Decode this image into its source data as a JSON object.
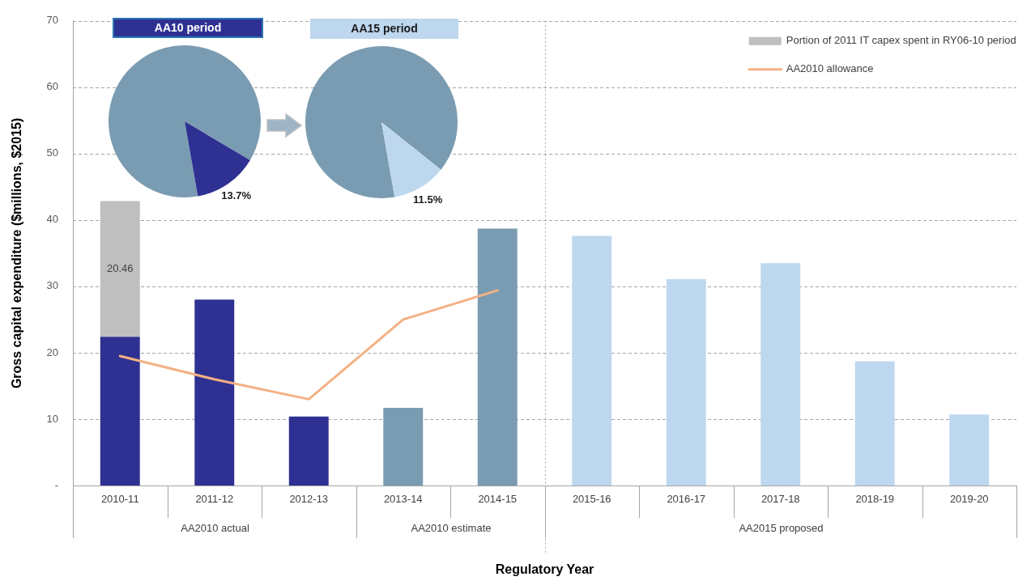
{
  "chart_data": [
    {
      "type": "bar",
      "xlabel": "Regulatory Year",
      "ylabel": "Gross capital expenditure ($millions, $2015)",
      "categories": [
        "2010-11",
        "2011-12",
        "2012-13",
        "2013-14",
        "2014-15",
        "2015-16",
        "2016-17",
        "2017-18",
        "2018-19",
        "2019-20"
      ],
      "series": [
        {
          "color": "#2e3192",
          "values": [
            22.4,
            28.0,
            10.4,
            null,
            null,
            null,
            null,
            null,
            null,
            null
          ]
        },
        {
          "name": "Portion of 2011 IT capex spent in RY06-10 period",
          "color": "#bfbfbf",
          "values": [
            20.46,
            null,
            null,
            null,
            null,
            null,
            null,
            null,
            null,
            null
          ],
          "value_labels": [
            "20.46",
            null,
            null,
            null,
            null,
            null,
            null,
            null,
            null,
            null
          ]
        },
        {
          "color": "#7a9cb2",
          "values": [
            null,
            null,
            null,
            11.7,
            38.7,
            null,
            null,
            null,
            null,
            null
          ]
        },
        {
          "color": "#bdd7ee",
          "values": [
            null,
            null,
            null,
            null,
            null,
            37.6,
            31.1,
            33.5,
            18.7,
            10.7
          ]
        },
        {
          "type": "line",
          "name": "AA2010 allowance",
          "color": "#f4b183",
          "values": [
            19.5,
            16.0,
            13.0,
            25.0,
            29.4,
            null,
            null,
            null,
            null,
            null
          ]
        }
      ],
      "stacked": true,
      "ylim": [
        0,
        70
      ],
      "yticks": [
        {
          "value": 0,
          "label": "-"
        },
        10,
        20,
        30,
        40,
        50,
        60,
        70
      ],
      "grid": "y",
      "legend": "top right",
      "annotations": [
        "AA2010 actual",
        "AA2010 estimate",
        "AA2015 proposed"
      ]
    },
    {
      "type": "pie",
      "title": "AA10 period",
      "categories": [
        null,
        null
      ],
      "values": [
        86.3,
        13.7
      ],
      "colors": [
        "#7a9cb2",
        "#2e3192"
      ],
      "value_labels": [
        null,
        "13.7%"
      ]
    },
    {
      "type": "pie",
      "title": "AA15 period",
      "categories": [
        null,
        null
      ],
      "values": [
        88.5,
        11.5
      ],
      "colors": [
        "#7a9cb2",
        "#bdd7ee"
      ],
      "value_labels": [
        null,
        "11.5%"
      ]
    }
  ]
}
